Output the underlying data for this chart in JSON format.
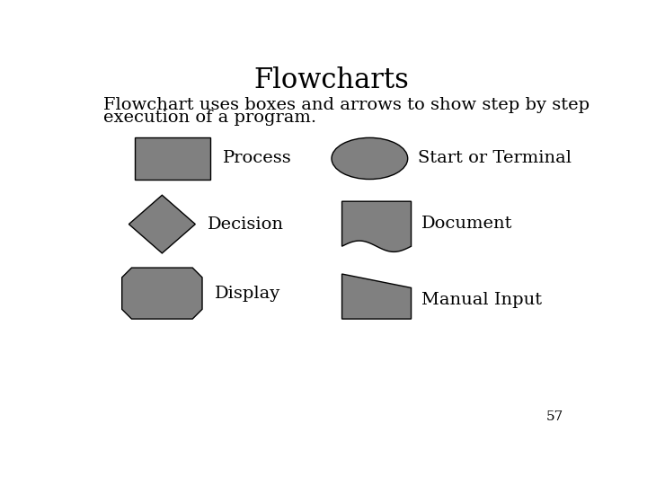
{
  "title": "Flowcharts",
  "subtitle_line1": "Flowchart uses boxes and arrows to show step by step",
  "subtitle_line2": "execution of a program.",
  "shape_color": "#808080",
  "background_color": "#ffffff",
  "title_fontsize": 22,
  "subtitle_fontsize": 14,
  "label_fontsize": 14,
  "page_number": "57",
  "labels": {
    "process": "Process",
    "decision": "Decision",
    "display": "Display",
    "terminal": "Start or Terminal",
    "document": "Document",
    "manual": "Manual Input"
  }
}
